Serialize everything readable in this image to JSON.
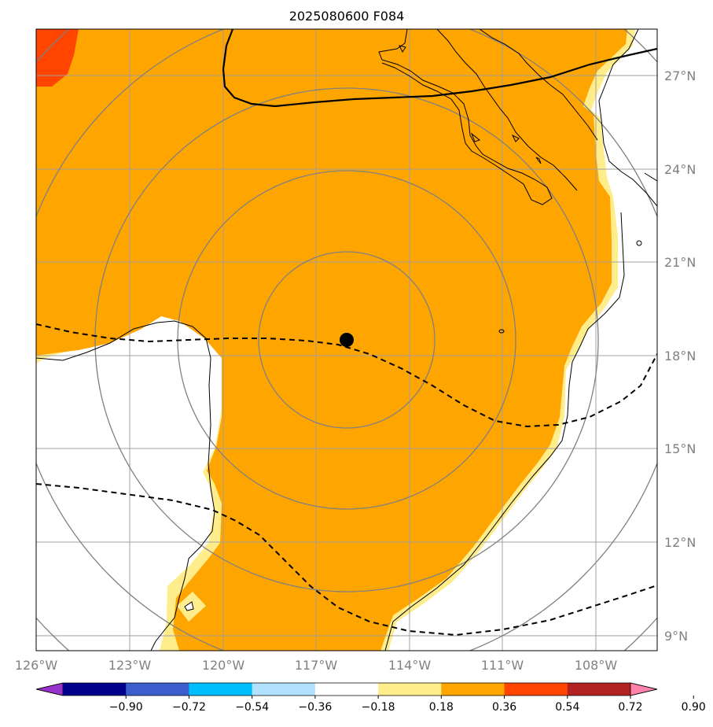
{
  "title": "2025080600 F084",
  "map": {
    "lon_range": [
      -126,
      -107
    ],
    "lat_range": [
      8.5,
      28.5
    ],
    "lon_ticks": [
      "126°W",
      "123°W",
      "120°W",
      "117°W",
      "114°W",
      "111°W",
      "108°W"
    ],
    "lat_ticks": [
      "27°N",
      "24°N",
      "21°N",
      "18°N",
      "15°N",
      "12°N",
      "9°N"
    ],
    "grid": true,
    "center_marker": {
      "lon": -116,
      "lat": 18.5
    },
    "range_rings_count": 5
  },
  "colorbar": {
    "ticks": [
      "−0.90",
      "−0.72",
      "−0.54",
      "−0.36",
      "−0.18",
      "0.18",
      "0.36",
      "0.54",
      "0.72",
      "0.90"
    ],
    "colors": [
      "#9932cc",
      "#00008b",
      "#3a5fcd",
      "#00bfff",
      "#b0e2ff",
      "#ffffff",
      "#ffec8b",
      "#ffa500",
      "#ff4500",
      "#b22222",
      "#ff82ab"
    ]
  },
  "colors": {
    "field_main": "#ffa500",
    "field_edge": "#ffec8b",
    "field_high": "#ff4500",
    "grid": "#a0a0a0",
    "rings": "#808080"
  }
}
